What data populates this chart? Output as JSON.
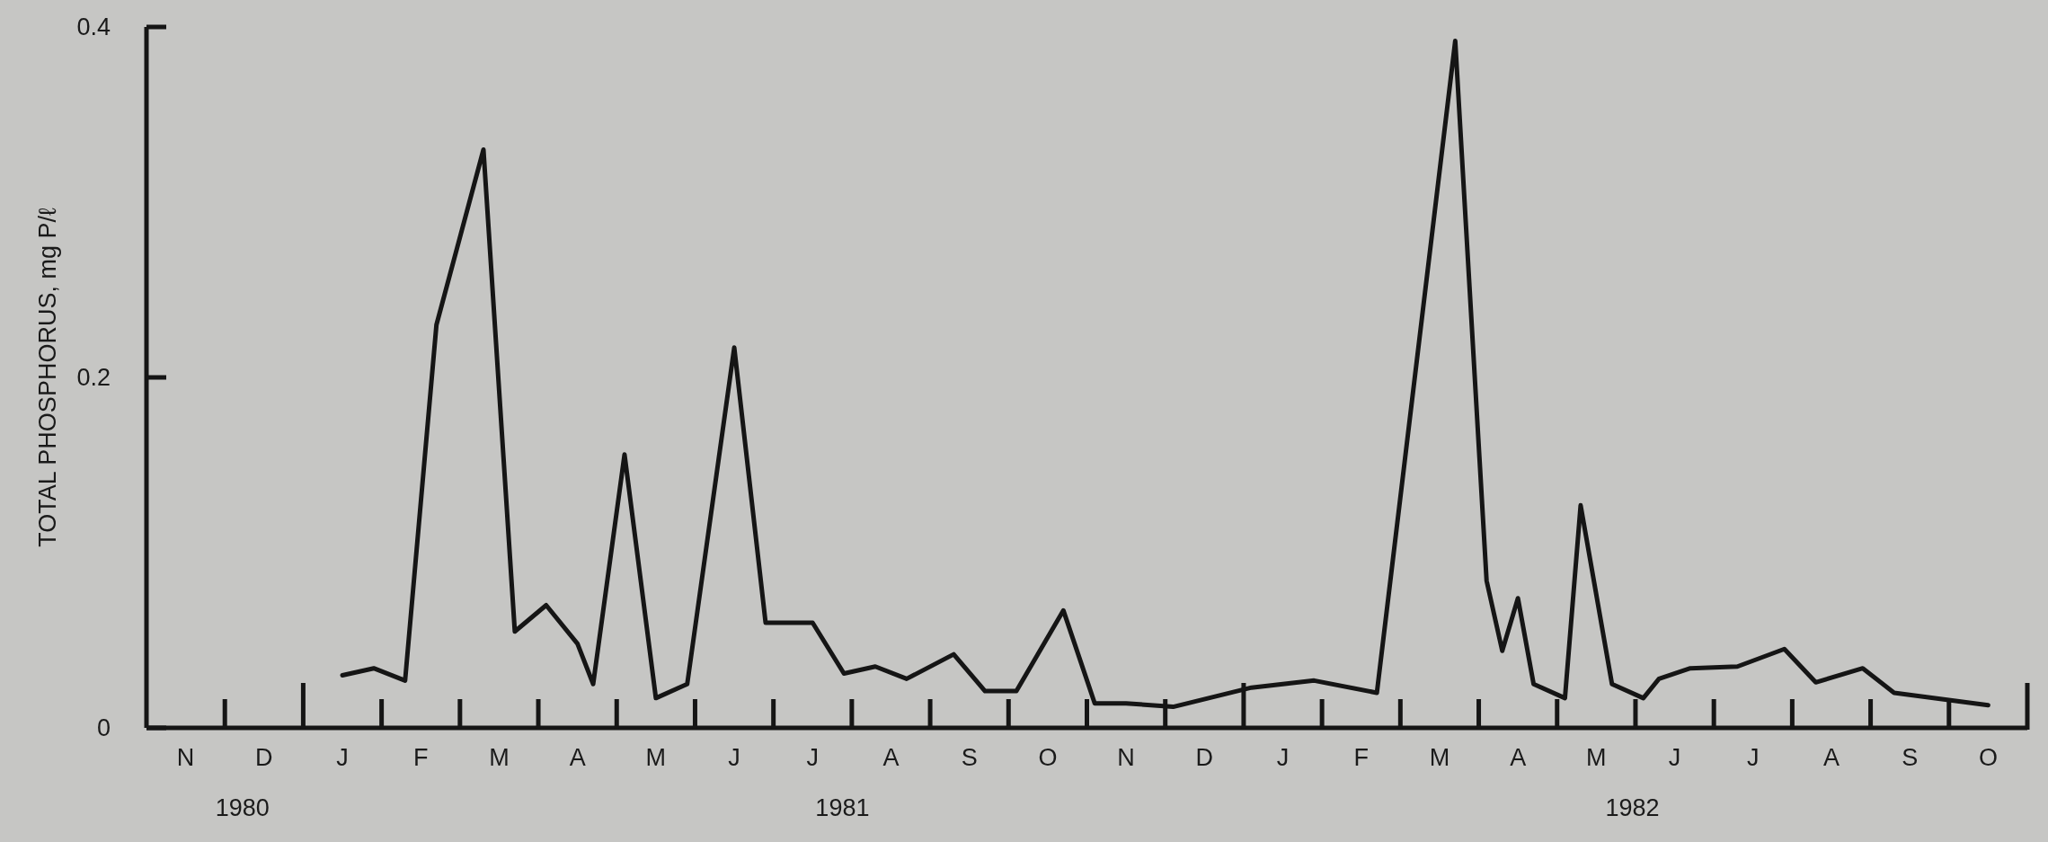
{
  "chart_data": {
    "type": "line",
    "ylabel": "TOTAL PHOSPHORUS, mg P/ℓ",
    "color": "#151515",
    "marker": "none",
    "line_style": "solid",
    "categories": [
      null,
      null,
      "N",
      null,
      null,
      null,
      null,
      "D",
      null,
      null,
      null,
      null,
      "J",
      null,
      null,
      null,
      null,
      "F",
      null,
      null,
      null,
      null,
      "M",
      null,
      null,
      null,
      null,
      "A",
      null,
      null,
      null,
      null,
      "M",
      null,
      null,
      null,
      null,
      "J",
      null,
      null,
      null,
      null,
      "J",
      null,
      null,
      null,
      null,
      "A",
      null,
      null,
      null,
      null,
      "S",
      null,
      null,
      null,
      null,
      "O",
      null,
      null,
      null,
      null,
      "N",
      null,
      null,
      null,
      null,
      "D",
      null,
      null,
      null,
      null,
      "J",
      null,
      null,
      null,
      null,
      "F",
      null,
      null,
      null,
      null,
      "M",
      null,
      null,
      null,
      null,
      "A",
      null,
      null,
      null,
      null,
      "M",
      null,
      null,
      null,
      null,
      "J",
      null,
      null,
      null,
      null,
      "J",
      null,
      null,
      null,
      null,
      "A",
      null,
      null,
      null,
      null,
      "S",
      null,
      null,
      null,
      null,
      "O",
      null,
      null
    ],
    "values": [
      null,
      null,
      null,
      null,
      null,
      null,
      null,
      null,
      null,
      null,
      null,
      null,
      0.03,
      null,
      0.034,
      null,
      0.027,
      null,
      0.23,
      null,
      null,
      0.33,
      null,
      0.055,
      null,
      0.07,
      null,
      0.048,
      0.025,
      null,
      0.156,
      null,
      0.017,
      null,
      0.025,
      null,
      null,
      0.217,
      null,
      0.06,
      null,
      null,
      0.06,
      null,
      0.031,
      null,
      0.035,
      null,
      0.028,
      null,
      null,
      0.042,
      null,
      0.021,
      null,
      0.021,
      null,
      null,
      0.067,
      null,
      0.014,
      null,
      0.014,
      null,
      null,
      0.012,
      null,
      null,
      null,
      null,
      0.023,
      null,
      null,
      null,
      0.027,
      null,
      null,
      null,
      0.02,
      null,
      null,
      null,
      null,
      0.392,
      null,
      0.084,
      0.044,
      0.074,
      0.025,
      null,
      0.017,
      0.127,
      null,
      0.025,
      null,
      0.017,
      0.028,
      null,
      0.034,
      null,
      null,
      0.035,
      null,
      null,
      0.045,
      null,
      0.026,
      null,
      null,
      0.034,
      null,
      0.02,
      null,
      null,
      null,
      null,
      null,
      0.013,
      null,
      null
    ],
    "ylim": [
      0,
      0.4
    ],
    "yticks": [
      0,
      {
        "value": 0.2,
        "label": "0.2"
      },
      {
        "value": 0.4,
        "label": "0.4"
      }
    ],
    "annotations": [
      "1980",
      "1981",
      "1982"
    ]
  }
}
